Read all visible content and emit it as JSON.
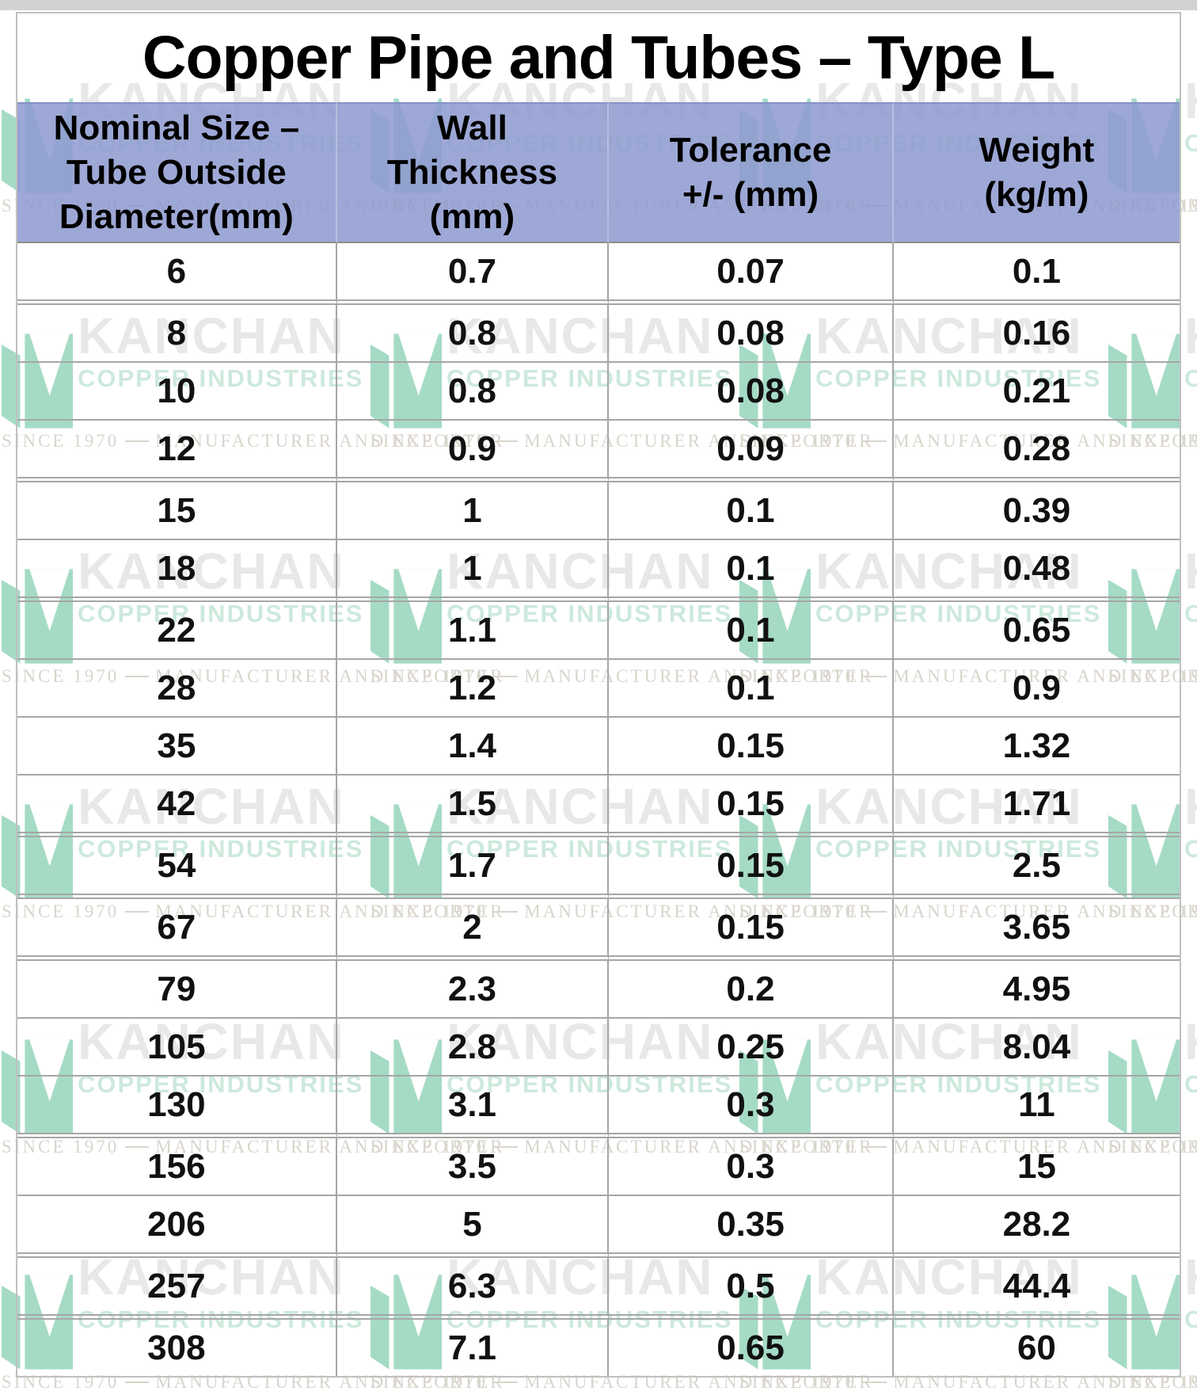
{
  "title": "Copper Pipe and Tubes – Type L",
  "table": {
    "columns": [
      "Nominal Size –\nTube Outside\nDiameter(mm)",
      "Wall\nThickness\n(mm)",
      "Tolerance\n+/- (mm)",
      "Weight\n(kg/m)"
    ],
    "rows": [
      [
        "6",
        "0.7",
        "0.07",
        "0.1"
      ],
      [
        "8",
        "0.8",
        "0.08",
        "0.16"
      ],
      [
        "10",
        "0.8",
        "0.08",
        "0.21"
      ],
      [
        "12",
        "0.9",
        "0.09",
        "0.28"
      ],
      [
        "15",
        "1",
        "0.1",
        "0.39"
      ],
      [
        "18",
        "1",
        "0.1",
        "0.48"
      ],
      [
        "22",
        "1.1",
        "0.1",
        "0.65"
      ],
      [
        "28",
        "1.2",
        "0.1",
        "0.9"
      ],
      [
        "35",
        "1.4",
        "0.15",
        "1.32"
      ],
      [
        "42",
        "1.5",
        "0.15",
        "1.71"
      ],
      [
        "54",
        "1.7",
        "0.15",
        "2.5"
      ],
      [
        "67",
        "2",
        "0.15",
        "3.65"
      ],
      [
        "79",
        "2.3",
        "0.2",
        "4.95"
      ],
      [
        "105",
        "2.8",
        "0.25",
        "8.04"
      ],
      [
        "130",
        "3.1",
        "0.3",
        "11"
      ],
      [
        "156",
        "3.5",
        "0.3",
        "15"
      ],
      [
        "206",
        "5",
        "0.35",
        "28.2"
      ],
      [
        "257",
        "6.3",
        "0.5",
        "44.4"
      ],
      [
        "308",
        "7.1",
        "0.65",
        "60"
      ]
    ]
  },
  "watermark": {
    "brand": "KANCHAN",
    "division": "COPPER INDUSTRIES",
    "since": "SINCE 1970",
    "tagline": "MANUFACTURER AND EXPORTER"
  },
  "colors": {
    "header_bg": "#8d99cf",
    "grid_line": "#a6a6a6",
    "outer_border": "#c0c0c0",
    "page_top_edge": "#d2d2d2",
    "title_color": "#000000",
    "cell_text": "#111111",
    "watermark_brand": "#e8e8e8",
    "watermark_logo_green": "#a5dbc5",
    "watermark_division": "#cde9dc",
    "watermark_footer": "#d9d5cc"
  }
}
